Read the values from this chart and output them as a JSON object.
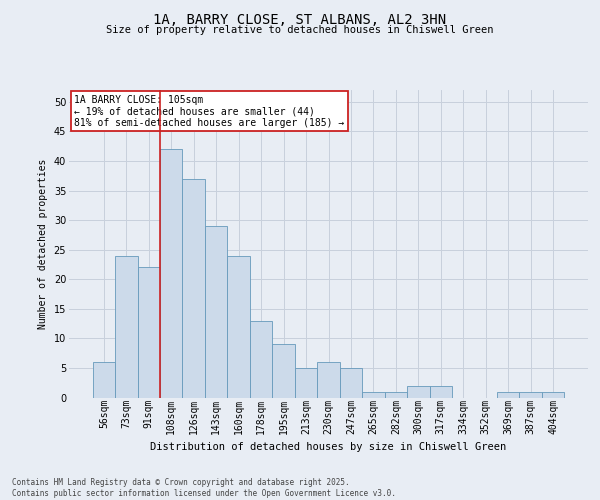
{
  "title": "1A, BARRY CLOSE, ST ALBANS, AL2 3HN",
  "subtitle": "Size of property relative to detached houses in Chiswell Green",
  "xlabel": "Distribution of detached houses by size in Chiswell Green",
  "ylabel": "Number of detached properties",
  "categories": [
    "56sqm",
    "73sqm",
    "91sqm",
    "108sqm",
    "126sqm",
    "143sqm",
    "160sqm",
    "178sqm",
    "195sqm",
    "213sqm",
    "230sqm",
    "247sqm",
    "265sqm",
    "282sqm",
    "300sqm",
    "317sqm",
    "334sqm",
    "352sqm",
    "369sqm",
    "387sqm",
    "404sqm"
  ],
  "values": [
    6,
    24,
    22,
    42,
    37,
    29,
    24,
    13,
    9,
    5,
    6,
    5,
    1,
    1,
    2,
    2,
    0,
    0,
    1,
    1,
    1
  ],
  "bar_color": "#ccdaea",
  "bar_edge_color": "#6699bb",
  "grid_color": "#c8d0dc",
  "background_color": "#e8edf4",
  "vline_color": "#cc2222",
  "vline_x_index": 2.5,
  "annotation_text": "1A BARRY CLOSE: 105sqm\n← 19% of detached houses are smaller (44)\n81% of semi-detached houses are larger (185) →",
  "annotation_box_color": "#ffffff",
  "annotation_box_edge": "#cc2222",
  "ylim": [
    0,
    52
  ],
  "yticks": [
    0,
    5,
    10,
    15,
    20,
    25,
    30,
    35,
    40,
    45,
    50
  ],
  "footer": "Contains HM Land Registry data © Crown copyright and database right 2025.\nContains public sector information licensed under the Open Government Licence v3.0."
}
